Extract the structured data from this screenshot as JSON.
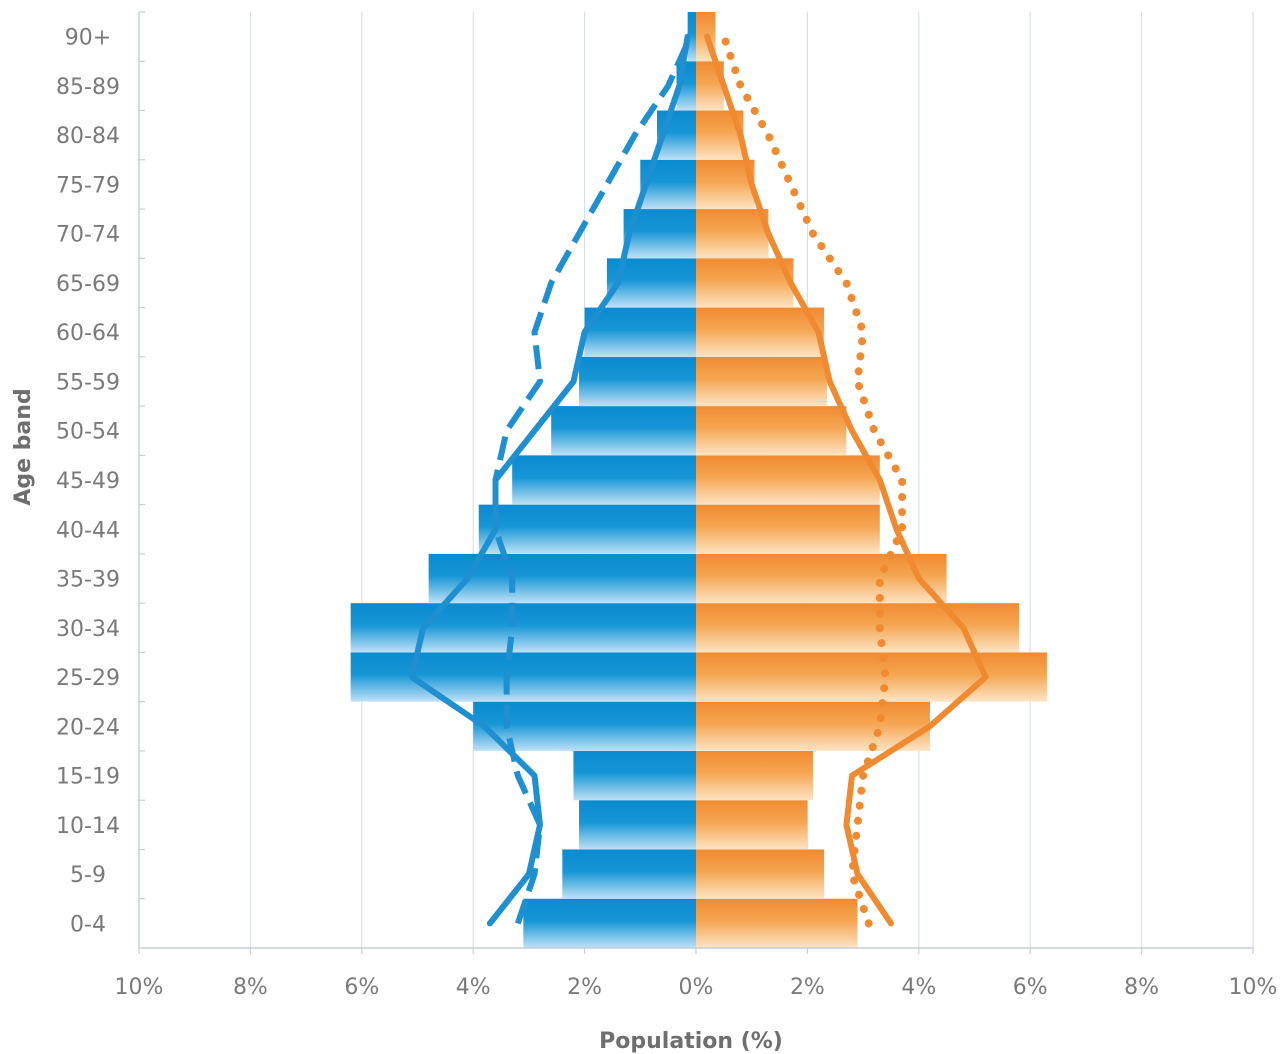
{
  "chart_data": {
    "type": "bar",
    "subtype": "population-pyramid",
    "title": "",
    "xlabel": "Population (%)",
    "ylabel": "Age band",
    "xlim": [
      -10,
      10
    ],
    "x_ticks": [
      -10,
      -8,
      -6,
      -4,
      -2,
      0,
      2,
      4,
      6,
      8,
      10
    ],
    "x_tick_labels": [
      "10%",
      "8%",
      "6%",
      "4%",
      "2%",
      "0%",
      "2%",
      "4%",
      "6%",
      "8%",
      "10%"
    ],
    "grid": "vertical",
    "legend": "none",
    "categories": [
      "0-4",
      "5-9",
      "10-14",
      "15-19",
      "20-24",
      "25-29",
      "30-34",
      "35-39",
      "40-44",
      "45-49",
      "50-54",
      "55-59",
      "60-64",
      "65-69",
      "70-74",
      "75-79",
      "80-84",
      "85-89",
      "90+"
    ],
    "bars": [
      {
        "side": "left",
        "color": "#1e8fd0",
        "values": [
          3.1,
          2.4,
          2.1,
          2.2,
          4.0,
          6.2,
          6.2,
          4.8,
          3.9,
          3.3,
          2.6,
          2.1,
          2.0,
          1.6,
          1.3,
          1.0,
          0.7,
          0.35,
          0.15
        ]
      },
      {
        "side": "right",
        "color": "#f08a30",
        "values": [
          2.9,
          2.3,
          2.0,
          2.1,
          4.2,
          6.3,
          5.8,
          4.5,
          3.3,
          3.3,
          2.7,
          2.35,
          2.3,
          1.75,
          1.3,
          1.05,
          0.85,
          0.5,
          0.35
        ]
      }
    ],
    "lines": [
      {
        "side": "left",
        "style": "solid",
        "color": "#1e8fd0",
        "values": [
          3.7,
          3.0,
          2.8,
          2.9,
          3.8,
          5.1,
          4.9,
          4.1,
          3.6,
          3.6,
          2.9,
          2.2,
          2.0,
          1.4,
          1.2,
          0.9,
          0.6,
          0.3,
          0.15
        ]
      },
      {
        "side": "left",
        "style": "dashed",
        "color": "#1e8fd0",
        "values": [
          3.2,
          2.9,
          2.8,
          3.2,
          3.4,
          3.4,
          3.3,
          3.3,
          3.6,
          3.6,
          3.4,
          2.8,
          2.9,
          2.6,
          2.1,
          1.6,
          1.1,
          0.5,
          0.1
        ]
      },
      {
        "side": "right",
        "style": "solid",
        "color": "#f08a30",
        "values": [
          3.5,
          2.9,
          2.7,
          2.8,
          4.2,
          5.2,
          4.8,
          4.0,
          3.6,
          3.3,
          2.8,
          2.4,
          2.2,
          1.7,
          1.3,
          1.0,
          0.8,
          0.5,
          0.2
        ]
      },
      {
        "side": "right",
        "style": "dotted",
        "color": "#f08a30",
        "values": [
          3.1,
          2.8,
          2.9,
          3.0,
          3.3,
          3.4,
          3.3,
          3.3,
          3.7,
          3.7,
          3.2,
          2.9,
          3.0,
          2.7,
          2.1,
          1.7,
          1.3,
          0.8,
          0.5
        ]
      }
    ]
  }
}
